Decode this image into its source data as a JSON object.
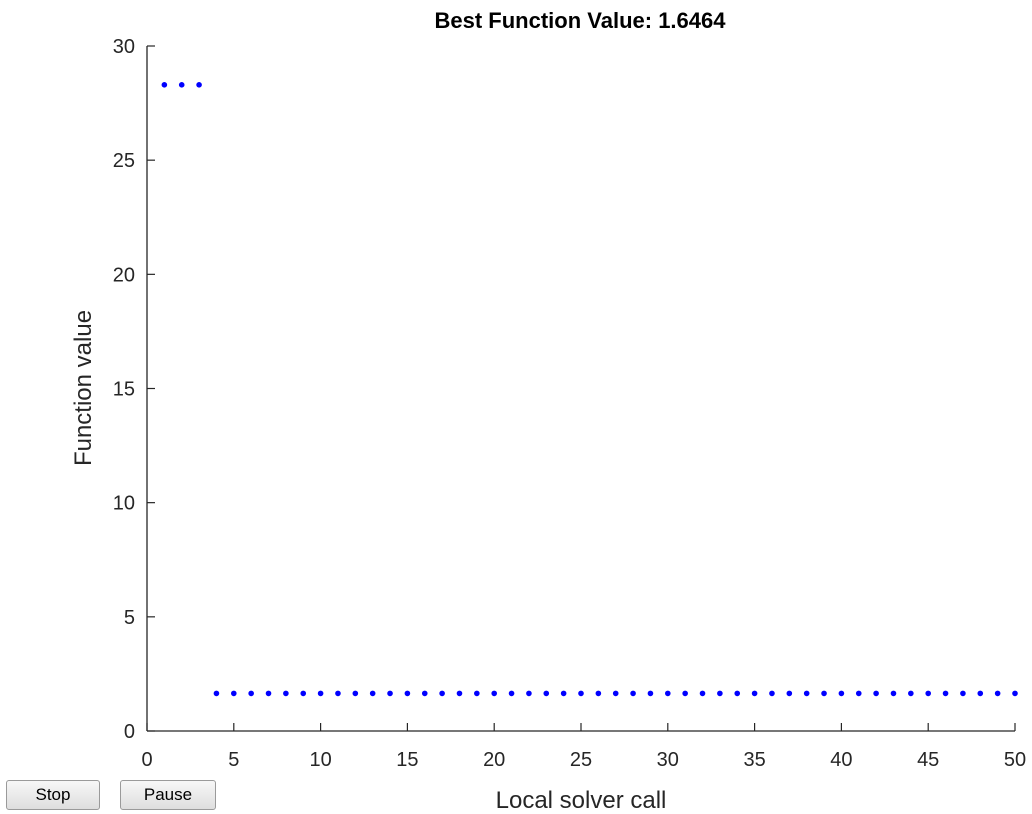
{
  "controls": {
    "stop_label": "Stop",
    "pause_label": "Pause"
  },
  "chart_data": {
    "type": "scatter",
    "title": "Best Function Value: 1.6464",
    "xlabel": "Local solver call",
    "ylabel": "Function value",
    "xlim": [
      0,
      50
    ],
    "ylim": [
      0,
      30
    ],
    "xticks": [
      0,
      5,
      10,
      15,
      20,
      25,
      30,
      35,
      40,
      45,
      50
    ],
    "yticks": [
      0,
      5,
      10,
      15,
      20,
      25,
      30
    ],
    "grid": false,
    "marker_color": "#0000ff",
    "x": [
      1,
      2,
      3,
      4,
      5,
      6,
      7,
      8,
      9,
      10,
      11,
      12,
      13,
      14,
      15,
      16,
      17,
      18,
      19,
      20,
      21,
      22,
      23,
      24,
      25,
      26,
      27,
      28,
      29,
      30,
      31,
      32,
      33,
      34,
      35,
      36,
      37,
      38,
      39,
      40,
      41,
      42,
      43,
      44,
      45,
      46,
      47,
      48,
      49,
      50
    ],
    "y": [
      28.3,
      28.3,
      28.3,
      1.6464,
      1.6464,
      1.6464,
      1.6464,
      1.6464,
      1.6464,
      1.6464,
      1.6464,
      1.6464,
      1.6464,
      1.6464,
      1.6464,
      1.6464,
      1.6464,
      1.6464,
      1.6464,
      1.6464,
      1.6464,
      1.6464,
      1.6464,
      1.6464,
      1.6464,
      1.6464,
      1.6464,
      1.6464,
      1.6464,
      1.6464,
      1.6464,
      1.6464,
      1.6464,
      1.6464,
      1.6464,
      1.6464,
      1.6464,
      1.6464,
      1.6464,
      1.6464,
      1.6464,
      1.6464,
      1.6464,
      1.6464,
      1.6464,
      1.6464,
      1.6464,
      1.6464,
      1.6464,
      1.6464
    ]
  }
}
